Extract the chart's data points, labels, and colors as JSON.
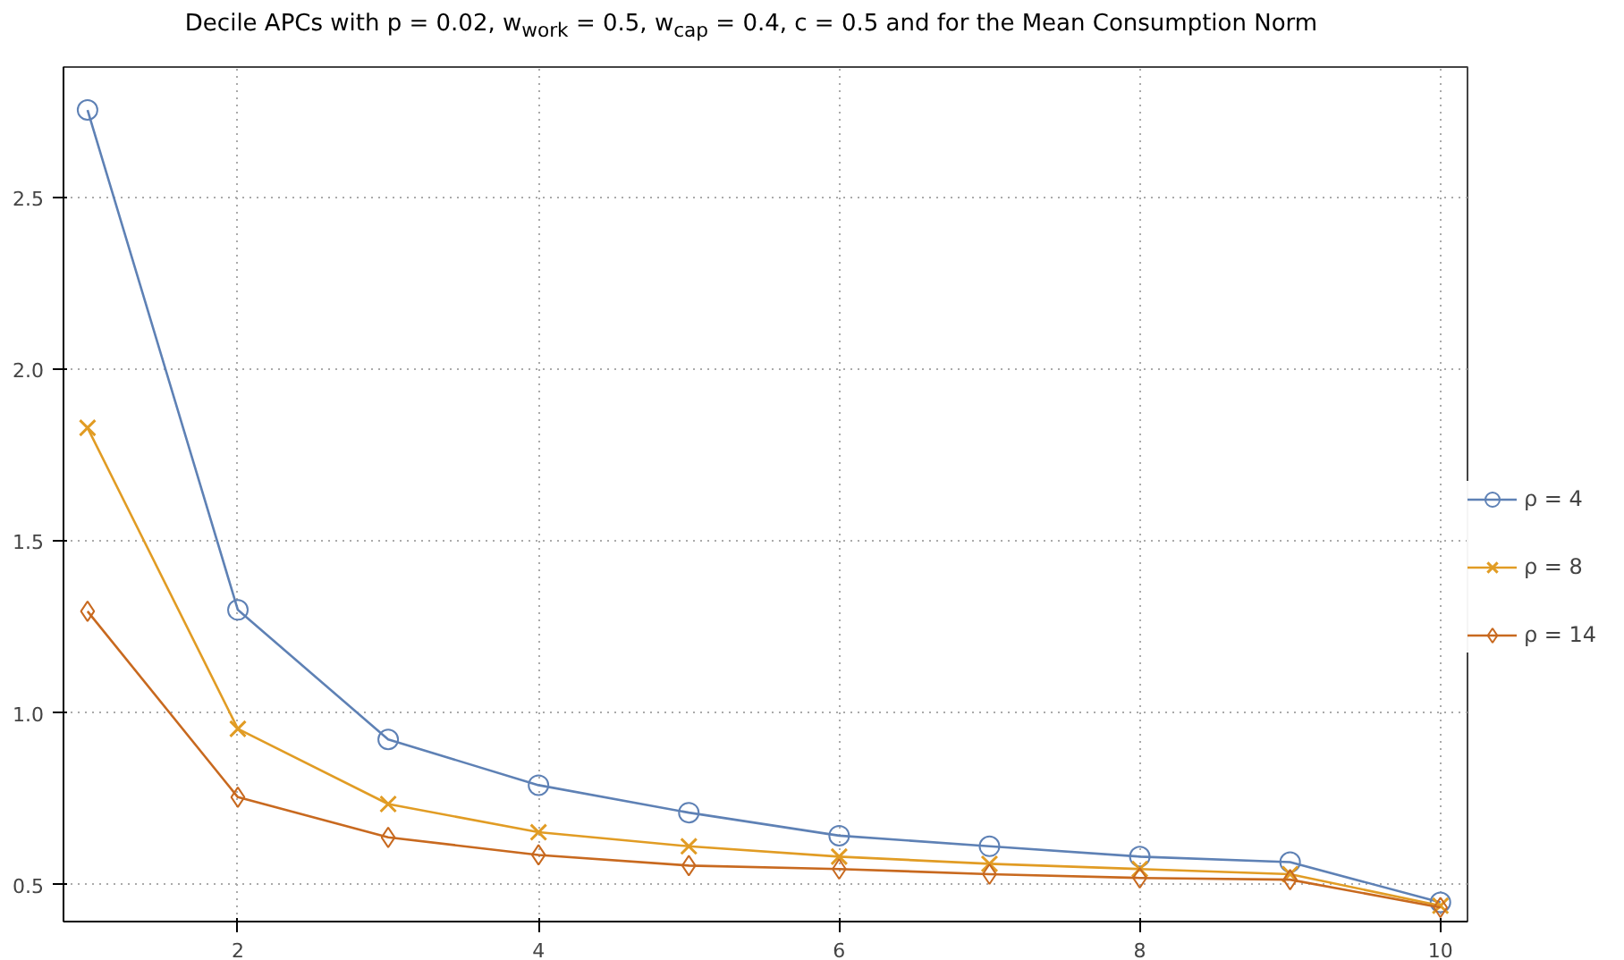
{
  "chart_data": {
    "type": "line",
    "title": "Decile APCs with p = 0.02, w$_{work}$ = 0.5, w$_{cap}$ = 0.4, c = 0.5 and for the Mean Consumption Norm",
    "x": [
      1,
      2,
      3,
      4,
      5,
      6,
      7,
      8,
      9,
      10
    ],
    "series": [
      {
        "name": "ρ = 4",
        "color": "#5e81b5",
        "marker": "circle",
        "values": [
          2.755,
          1.3,
          0.923,
          0.79,
          0.71,
          0.643,
          0.612,
          0.582,
          0.566,
          0.449
        ]
      },
      {
        "name": "ρ = 8",
        "color": "#e19c24",
        "marker": "cross",
        "values": [
          1.83,
          0.954,
          0.735,
          0.653,
          0.612,
          0.582,
          0.561,
          0.546,
          0.531,
          0.439
        ]
      },
      {
        "name": "ρ = 14",
        "color": "#c8691f",
        "marker": "diamond",
        "values": [
          1.296,
          0.755,
          0.638,
          0.587,
          0.556,
          0.546,
          0.531,
          0.52,
          0.515,
          0.434
        ]
      }
    ],
    "xlim": [
      0.84,
      10.18
    ],
    "ylim": [
      0.393,
      2.88
    ],
    "xticks": [
      2,
      4,
      6,
      8,
      10
    ],
    "yticks": [
      0.5,
      {
        "value": 1,
        "label": "1.0"
      },
      1.5,
      {
        "value": 2,
        "label": "2.0"
      },
      2.5
    ],
    "grid": true,
    "legend": "right",
    "line_style": "solid"
  }
}
